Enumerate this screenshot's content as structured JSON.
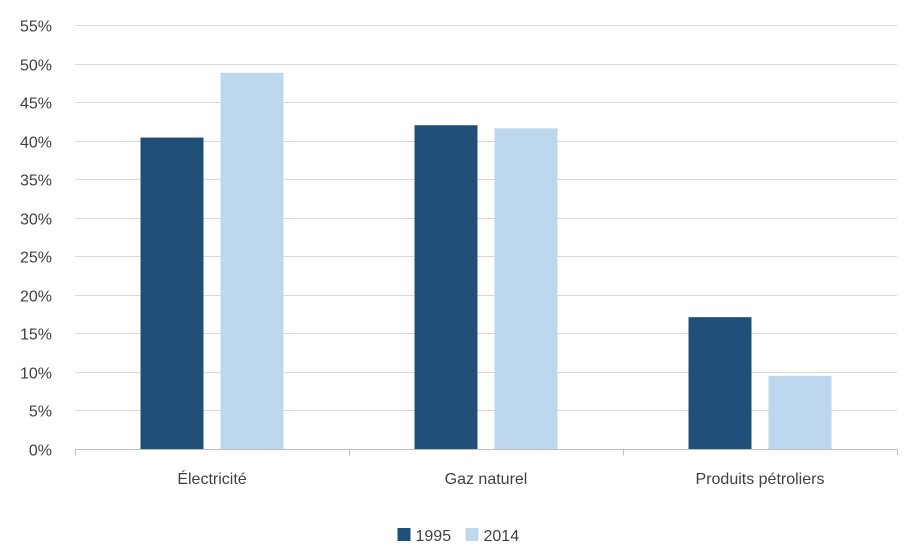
{
  "chart_data": {
    "type": "bar",
    "categories": [
      "Électricité",
      "Gaz naturel",
      "Produits pétroliers"
    ],
    "series": [
      {
        "name": "1995",
        "values": [
          40.4,
          42.0,
          17.1
        ],
        "color": "#1f4e79"
      },
      {
        "name": "2014",
        "values": [
          48.8,
          41.6,
          9.5
        ],
        "color": "#bdd7ee"
      }
    ],
    "ylim": [
      0,
      55
    ],
    "yticks": [
      0,
      5,
      10,
      15,
      20,
      25,
      30,
      35,
      40,
      45,
      50,
      55
    ],
    "ytick_labels": [
      "0%",
      "5%",
      "10%",
      "15%",
      "20%",
      "25%",
      "30%",
      "35%",
      "40%",
      "45%",
      "50%",
      "55%"
    ],
    "grid": true,
    "legend_position": "bottom",
    "title": "",
    "xlabel": "",
    "ylabel": ""
  }
}
